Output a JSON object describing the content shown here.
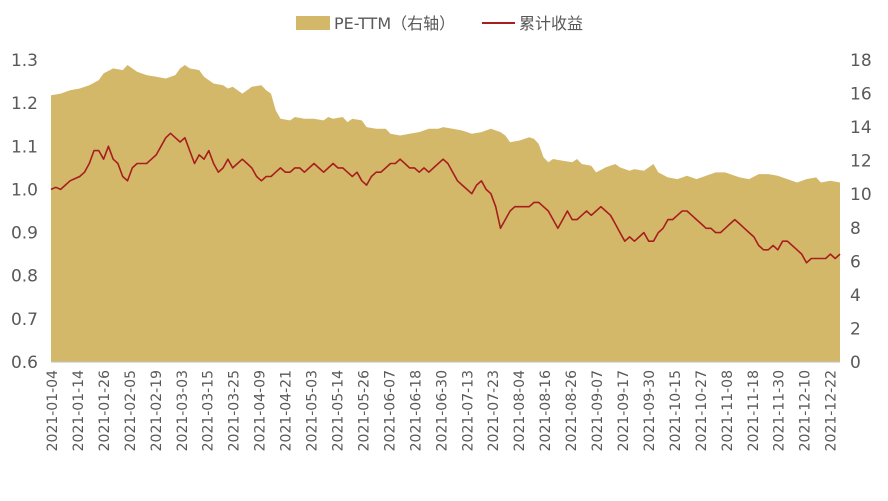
{
  "chart_data": {
    "type": "area+line",
    "legend": {
      "position": "top-center",
      "items": [
        {
          "name": "PE-TTM（右轴）",
          "color": "#D4B86A",
          "kind": "area"
        },
        {
          "name": "累计收益",
          "color": "#A71E1E",
          "kind": "line"
        }
      ]
    },
    "x_ticks": [
      "2021-01-04",
      "2021-01-14",
      "2021-01-26",
      "2021-02-05",
      "2021-02-19",
      "2021-03-03",
      "2021-03-15",
      "2021-03-25",
      "2021-04-09",
      "2021-04-21",
      "2021-05-03",
      "2021-05-14",
      "2021-05-26",
      "2021-06-07",
      "2021-06-18",
      "2021-06-30",
      "2021-07-13",
      "2021-07-23",
      "2021-08-04",
      "2021-08-16",
      "2021-08-26",
      "2021-09-07",
      "2021-09-17",
      "2021-09-30",
      "2021-10-15",
      "2021-10-27",
      "2021-11-08",
      "2021-11-18",
      "2021-11-30",
      "2021-12-10",
      "2021-12-22"
    ],
    "y_left": {
      "min": 0.6,
      "max": 1.3,
      "step": 0.1,
      "ticks": [
        "0.6",
        "0.7",
        "0.8",
        "0.9",
        "1.0",
        "1.1",
        "1.2",
        "1.3"
      ]
    },
    "y_right": {
      "min": 0,
      "max": 18,
      "step": 2,
      "ticks": [
        "0",
        "2",
        "4",
        "6",
        "8",
        "10",
        "12",
        "14",
        "16",
        "18"
      ]
    },
    "grid": false,
    "series": [
      {
        "name": "PE-TTM（右轴）",
        "axis": "right",
        "points": [
          [
            0,
            15.9
          ],
          [
            2,
            16.0
          ],
          [
            4,
            16.2
          ],
          [
            6,
            16.3
          ],
          [
            8,
            16.5
          ],
          [
            10,
            16.8
          ],
          [
            11,
            17.2
          ],
          [
            13,
            17.5
          ],
          [
            15,
            17.4
          ],
          [
            16,
            17.7
          ],
          [
            18,
            17.3
          ],
          [
            20,
            17.1
          ],
          [
            22,
            17.0
          ],
          [
            24,
            16.9
          ],
          [
            26,
            17.1
          ],
          [
            27,
            17.5
          ],
          [
            28,
            17.7
          ],
          [
            29,
            17.5
          ],
          [
            31,
            17.4
          ],
          [
            32,
            17.0
          ],
          [
            34,
            16.6
          ],
          [
            36,
            16.5
          ],
          [
            37,
            16.3
          ],
          [
            38,
            16.4
          ],
          [
            40,
            16.0
          ],
          [
            41,
            16.2
          ],
          [
            42,
            16.4
          ],
          [
            44,
            16.5
          ],
          [
            45,
            16.2
          ],
          [
            46,
            16.0
          ],
          [
            47,
            15.0
          ],
          [
            48,
            14.5
          ],
          [
            50,
            14.4
          ],
          [
            51,
            14.6
          ],
          [
            53,
            14.5
          ],
          [
            55,
            14.5
          ],
          [
            57,
            14.4
          ],
          [
            58,
            14.6
          ],
          [
            59,
            14.5
          ],
          [
            61,
            14.6
          ],
          [
            62,
            14.3
          ],
          [
            63,
            14.5
          ],
          [
            65,
            14.4
          ],
          [
            66,
            14.0
          ],
          [
            68,
            13.9
          ],
          [
            70,
            13.9
          ],
          [
            71,
            13.6
          ],
          [
            73,
            13.5
          ],
          [
            75,
            13.6
          ],
          [
            77,
            13.7
          ],
          [
            79,
            13.9
          ],
          [
            81,
            13.9
          ],
          [
            82,
            14.0
          ],
          [
            84,
            13.9
          ],
          [
            86,
            13.8
          ],
          [
            88,
            13.6
          ],
          [
            90,
            13.7
          ],
          [
            92,
            13.9
          ],
          [
            94,
            13.7
          ],
          [
            95,
            13.5
          ],
          [
            96,
            13.1
          ],
          [
            98,
            13.2
          ],
          [
            100,
            13.4
          ],
          [
            101,
            13.3
          ],
          [
            102,
            13.0
          ],
          [
            103,
            12.2
          ],
          [
            104,
            11.9
          ],
          [
            105,
            12.1
          ],
          [
            107,
            12.0
          ],
          [
            109,
            11.9
          ],
          [
            110,
            12.1
          ],
          [
            111,
            11.8
          ],
          [
            113,
            11.7
          ],
          [
            114,
            11.3
          ],
          [
            116,
            11.6
          ],
          [
            118,
            11.8
          ],
          [
            119,
            11.6
          ],
          [
            121,
            11.4
          ],
          [
            122,
            11.5
          ],
          [
            124,
            11.4
          ],
          [
            126,
            11.8
          ],
          [
            127,
            11.3
          ],
          [
            129,
            11.0
          ],
          [
            131,
            10.9
          ],
          [
            133,
            11.1
          ],
          [
            135,
            10.9
          ],
          [
            137,
            11.1
          ],
          [
            139,
            11.3
          ],
          [
            141,
            11.3
          ],
          [
            143,
            11.1
          ],
          [
            144,
            11.0
          ],
          [
            146,
            10.9
          ],
          [
            148,
            11.2
          ],
          [
            150,
            11.2
          ],
          [
            152,
            11.1
          ],
          [
            154,
            10.9
          ],
          [
            156,
            10.7
          ],
          [
            158,
            10.9
          ],
          [
            160,
            11.0
          ],
          [
            161,
            10.7
          ],
          [
            163,
            10.8
          ],
          [
            165,
            10.7
          ]
        ]
      },
      {
        "name": "累计收益",
        "axis": "left",
        "points": [
          [
            0,
            1.0
          ],
          [
            1,
            1.005
          ],
          [
            2,
            1.0
          ],
          [
            3,
            1.01
          ],
          [
            4,
            1.02
          ],
          [
            5,
            1.025
          ],
          [
            6,
            1.03
          ],
          [
            7,
            1.04
          ],
          [
            8,
            1.06
          ],
          [
            9,
            1.09
          ],
          [
            10,
            1.09
          ],
          [
            11,
            1.07
          ],
          [
            12,
            1.1
          ],
          [
            13,
            1.07
          ],
          [
            14,
            1.06
          ],
          [
            15,
            1.03
          ],
          [
            16,
            1.02
          ],
          [
            17,
            1.05
          ],
          [
            18,
            1.06
          ],
          [
            19,
            1.06
          ],
          [
            20,
            1.06
          ],
          [
            21,
            1.07
          ],
          [
            22,
            1.08
          ],
          [
            23,
            1.1
          ],
          [
            24,
            1.12
          ],
          [
            25,
            1.13
          ],
          [
            26,
            1.12
          ],
          [
            27,
            1.11
          ],
          [
            28,
            1.12
          ],
          [
            29,
            1.09
          ],
          [
            30,
            1.06
          ],
          [
            31,
            1.08
          ],
          [
            32,
            1.07
          ],
          [
            33,
            1.09
          ],
          [
            34,
            1.06
          ],
          [
            35,
            1.04
          ],
          [
            36,
            1.05
          ],
          [
            37,
            1.07
          ],
          [
            38,
            1.05
          ],
          [
            39,
            1.06
          ],
          [
            40,
            1.07
          ],
          [
            41,
            1.06
          ],
          [
            42,
            1.05
          ],
          [
            43,
            1.03
          ],
          [
            44,
            1.02
          ],
          [
            45,
            1.03
          ],
          [
            46,
            1.03
          ],
          [
            47,
            1.04
          ],
          [
            48,
            1.05
          ],
          [
            49,
            1.04
          ],
          [
            50,
            1.04
          ],
          [
            51,
            1.05
          ],
          [
            52,
            1.05
          ],
          [
            53,
            1.04
          ],
          [
            54,
            1.05
          ],
          [
            55,
            1.06
          ],
          [
            56,
            1.05
          ],
          [
            57,
            1.04
          ],
          [
            58,
            1.05
          ],
          [
            59,
            1.06
          ],
          [
            60,
            1.05
          ],
          [
            61,
            1.05
          ],
          [
            62,
            1.04
          ],
          [
            63,
            1.03
          ],
          [
            64,
            1.04
          ],
          [
            65,
            1.02
          ],
          [
            66,
            1.01
          ],
          [
            67,
            1.03
          ],
          [
            68,
            1.04
          ],
          [
            69,
            1.04
          ],
          [
            70,
            1.05
          ],
          [
            71,
            1.06
          ],
          [
            72,
            1.06
          ],
          [
            73,
            1.07
          ],
          [
            74,
            1.06
          ],
          [
            75,
            1.05
          ],
          [
            76,
            1.05
          ],
          [
            77,
            1.04
          ],
          [
            78,
            1.05
          ],
          [
            79,
            1.04
          ],
          [
            80,
            1.05
          ],
          [
            81,
            1.06
          ],
          [
            82,
            1.07
          ],
          [
            83,
            1.06
          ],
          [
            84,
            1.04
          ],
          [
            85,
            1.02
          ],
          [
            86,
            1.01
          ],
          [
            87,
            1.0
          ],
          [
            88,
            0.99
          ],
          [
            89,
            1.01
          ],
          [
            90,
            1.02
          ],
          [
            91,
            1.0
          ],
          [
            92,
            0.99
          ],
          [
            93,
            0.96
          ],
          [
            94,
            0.91
          ],
          [
            95,
            0.93
          ],
          [
            96,
            0.95
          ],
          [
            97,
            0.96
          ],
          [
            98,
            0.96
          ],
          [
            99,
            0.96
          ],
          [
            100,
            0.96
          ],
          [
            101,
            0.97
          ],
          [
            102,
            0.97
          ],
          [
            103,
            0.96
          ],
          [
            104,
            0.95
          ],
          [
            105,
            0.93
          ],
          [
            106,
            0.91
          ],
          [
            107,
            0.93
          ],
          [
            108,
            0.95
          ],
          [
            109,
            0.93
          ],
          [
            110,
            0.93
          ],
          [
            111,
            0.94
          ],
          [
            112,
            0.95
          ],
          [
            113,
            0.94
          ],
          [
            114,
            0.95
          ],
          [
            115,
            0.96
          ],
          [
            116,
            0.95
          ],
          [
            117,
            0.94
          ],
          [
            118,
            0.92
          ],
          [
            119,
            0.9
          ],
          [
            120,
            0.88
          ],
          [
            121,
            0.89
          ],
          [
            122,
            0.88
          ],
          [
            123,
            0.89
          ],
          [
            124,
            0.9
          ],
          [
            125,
            0.88
          ],
          [
            126,
            0.88
          ],
          [
            127,
            0.9
          ],
          [
            128,
            0.91
          ],
          [
            129,
            0.93
          ],
          [
            130,
            0.93
          ],
          [
            131,
            0.94
          ],
          [
            132,
            0.95
          ],
          [
            133,
            0.95
          ],
          [
            134,
            0.94
          ],
          [
            135,
            0.93
          ],
          [
            136,
            0.92
          ],
          [
            137,
            0.91
          ],
          [
            138,
            0.91
          ],
          [
            139,
            0.9
          ],
          [
            140,
            0.9
          ],
          [
            141,
            0.91
          ],
          [
            142,
            0.92
          ],
          [
            143,
            0.93
          ],
          [
            144,
            0.92
          ],
          [
            145,
            0.91
          ],
          [
            146,
            0.9
          ],
          [
            147,
            0.89
          ],
          [
            148,
            0.87
          ],
          [
            149,
            0.86
          ],
          [
            150,
            0.86
          ],
          [
            151,
            0.87
          ],
          [
            152,
            0.86
          ],
          [
            153,
            0.88
          ],
          [
            154,
            0.88
          ],
          [
            155,
            0.87
          ],
          [
            156,
            0.86
          ],
          [
            157,
            0.85
          ],
          [
            158,
            0.83
          ],
          [
            159,
            0.84
          ],
          [
            160,
            0.84
          ],
          [
            161,
            0.84
          ],
          [
            162,
            0.84
          ],
          [
            163,
            0.85
          ],
          [
            164,
            0.84
          ],
          [
            165,
            0.85
          ]
        ]
      }
    ]
  }
}
